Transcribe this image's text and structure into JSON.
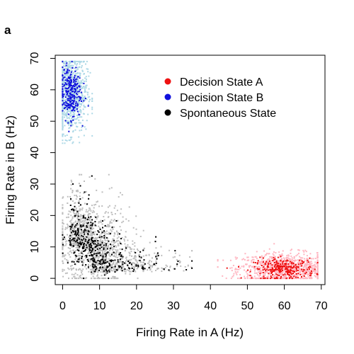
{
  "panel_label": "a",
  "colors": {
    "decision_a_dark": "#ee1111",
    "decision_a_light": "#ffb6c1",
    "decision_b_dark": "#1111dd",
    "decision_b_light": "#add8e6",
    "spontaneous_dark": "#000000",
    "spontaneous_light": "#bebebe"
  },
  "chart_data": {
    "type": "scatter",
    "title": "",
    "xlabel": "Firing Rate in A (Hz)",
    "ylabel": "Firing Rate in B (Hz)",
    "xlim": [
      -2,
      71
    ],
    "ylim": [
      -2,
      71
    ],
    "xticks": [
      0,
      10,
      20,
      30,
      40,
      50,
      60,
      70
    ],
    "yticks": [
      0,
      10,
      20,
      30,
      40,
      50,
      60,
      70
    ],
    "grid": false,
    "legend_position": "top-right",
    "legend": [
      {
        "label": "Decision State A",
        "color": "#ee1111"
      },
      {
        "label": "Decision State B",
        "color": "#1111dd"
      },
      {
        "label": "Spontaneous State",
        "color": "#000000"
      }
    ],
    "series": [
      {
        "label": "Decision State A",
        "color_dark": "#ee1111",
        "color_light": "#ffb6c1",
        "clusters": [
          {
            "center": [
              60,
              3
            ],
            "spread": [
              5.5,
              2.2
            ],
            "x_range": [
              42,
              69
            ],
            "y_range": [
              0,
              11
            ]
          }
        ]
      },
      {
        "label": "Decision State B",
        "color_dark": "#1111dd",
        "color_light": "#add8e6",
        "clusters": [
          {
            "center": [
              2,
              59
            ],
            "spread": [
              2.0,
              5.5
            ],
            "x_range": [
              0,
              8
            ],
            "y_range": [
              43,
              69
            ]
          }
        ]
      },
      {
        "label": "Spontaneous State",
        "color_dark": "#000000",
        "color_light": "#bebebe",
        "clusters": [
          {
            "center": [
              8,
              10
            ],
            "spread": [
              4.5,
              5.5
            ],
            "x_range": [
              0,
              35
            ],
            "y_range": [
              0,
              33
            ]
          }
        ]
      }
    ]
  }
}
